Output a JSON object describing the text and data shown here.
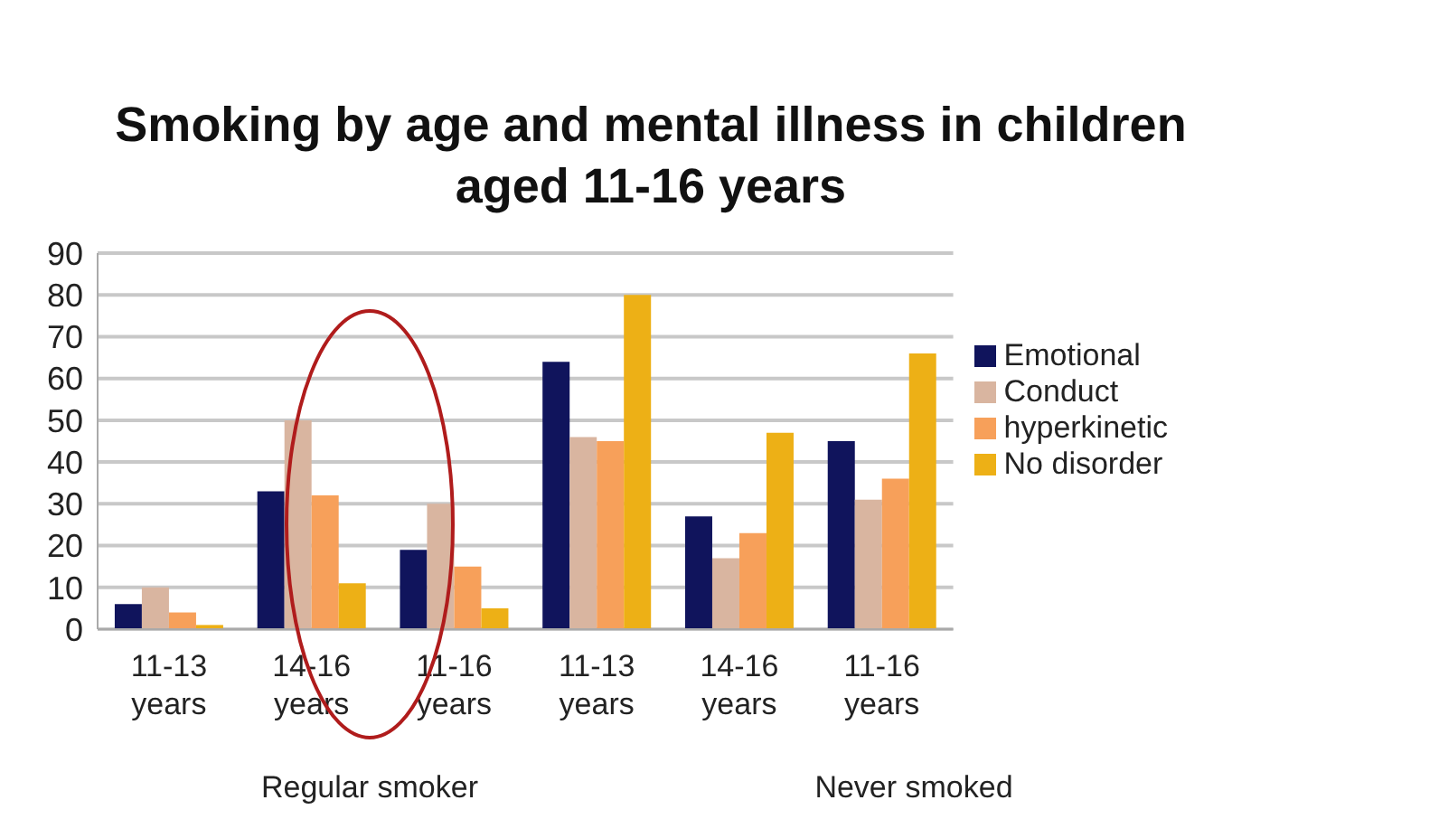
{
  "chart_data": {
    "type": "bar",
    "title": "Smoking by age and mental illness in children aged 11-16 years",
    "categories": [
      "11-13 years",
      "14-16 years",
      "11-16 years",
      "11-13 years",
      "14-16 years",
      "11-16 years"
    ],
    "series": [
      {
        "name": "Emotional",
        "color": "#10145c",
        "values": [
          6,
          33,
          19,
          64,
          27,
          45
        ]
      },
      {
        "name": "Conduct",
        "color": "#d9b5a0",
        "values": [
          10,
          50,
          30,
          46,
          17,
          31
        ]
      },
      {
        "name": "hyperkinetic",
        "color": "#f7a05a",
        "values": [
          4,
          32,
          15,
          45,
          23,
          36
        ]
      },
      {
        "name": "No disorder",
        "color": "#edb016",
        "values": [
          1,
          11,
          5,
          80,
          47,
          66
        ]
      }
    ],
    "annotations": [
      "Regular smoker",
      "Never smoked"
    ],
    "ylim": [
      0,
      90
    ],
    "yticks": [
      0,
      10,
      20,
      30,
      40,
      50,
      60,
      70,
      80,
      90
    ],
    "grid": "y",
    "legend": "right"
  }
}
